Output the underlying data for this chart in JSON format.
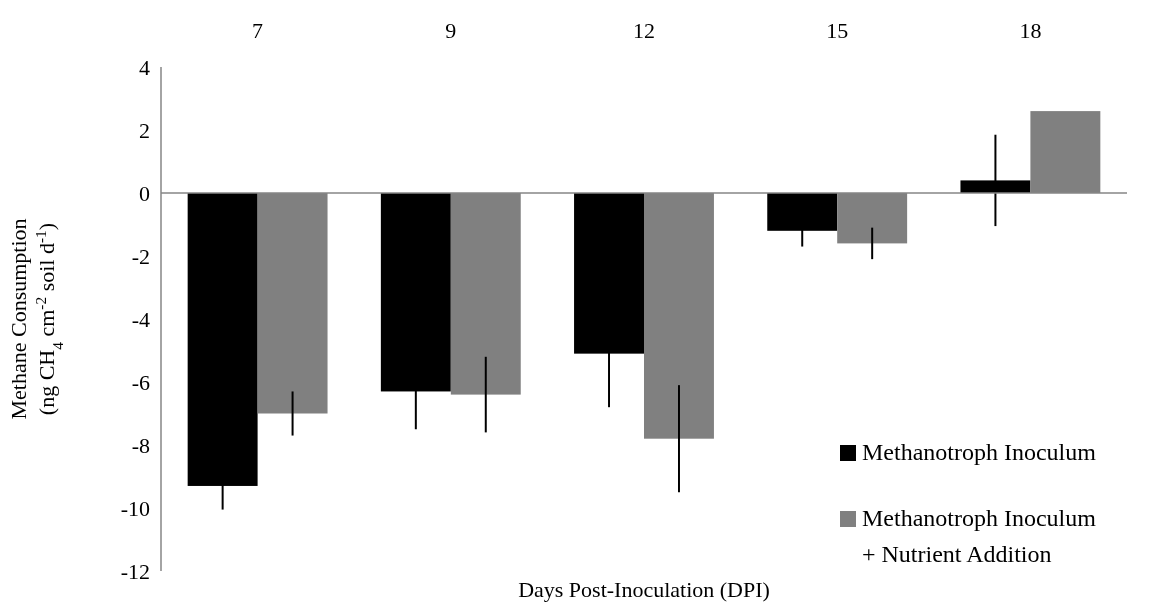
{
  "chart_data": {
    "type": "bar",
    "xlabel": "Days Post-Inoculation (DPI)",
    "ylabel": "Methane Consumption\n(ng  CH$_{4}$ cm$^{-2}$ soil d$^{-1}$)",
    "categories": [
      "7",
      "9",
      "12",
      "15",
      "18"
    ],
    "series": [
      {
        "name": "Methanotroph Inoculum",
        "color": "#000000",
        "values": [
          -9.3,
          -6.3,
          -5.1,
          -1.2,
          0.4
        ],
        "errors": [
          0.75,
          1.2,
          1.7,
          0.5,
          1.45
        ]
      },
      {
        "name": "Methanotroph Inoculum\n+ Nutrient Addition",
        "color": "#808080",
        "values": [
          -7.0,
          -6.4,
          -7.8,
          -1.6,
          2.6
        ],
        "errors": [
          0.7,
          1.2,
          1.7,
          0.5,
          null
        ]
      }
    ],
    "ylim": [
      -12,
      4
    ],
    "yticks": [
      -12,
      -10,
      -8,
      -6,
      -4,
      -2,
      0,
      2,
      4
    ],
    "legend": "bottom right"
  }
}
